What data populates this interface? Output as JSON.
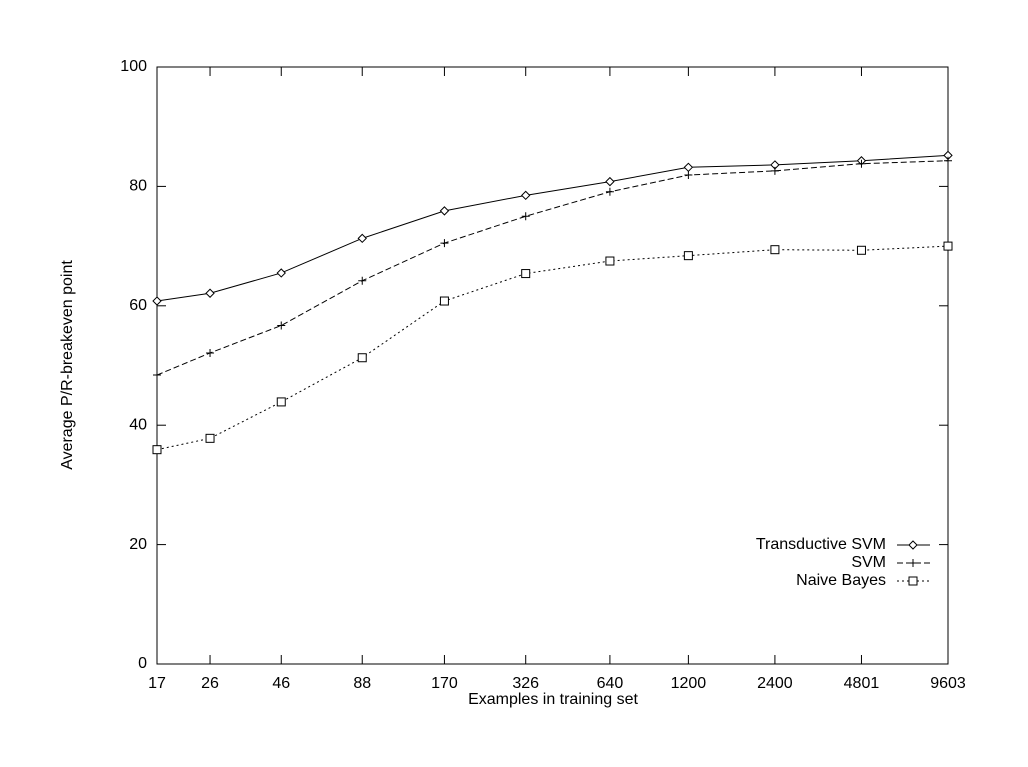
{
  "chart_data": {
    "type": "line",
    "x_label": "Examples in training set",
    "y_label": "Average P/R-breakeven point",
    "x": [
      17,
      26,
      46,
      88,
      170,
      326,
      640,
      1200,
      2400,
      4801,
      9603
    ],
    "xlim": [
      17,
      9603
    ],
    "xticks": [
      17,
      26,
      46,
      88,
      170,
      326,
      640,
      1200,
      2400,
      4801,
      9603
    ],
    "log_x": true,
    "ylim": [
      0,
      100
    ],
    "yticks": [
      0,
      20,
      40,
      60,
      80,
      100
    ],
    "grid": false,
    "legend": "lower right",
    "series": [
      {
        "name": "Transductive SVM",
        "color": "#000000",
        "values": [
          60.8,
          62.1,
          65.5,
          71.3,
          75.9,
          78.5,
          80.8,
          83.2,
          83.6,
          84.3,
          85.2
        ]
      },
      {
        "name": "SVM",
        "color": "#000000",
        "values": [
          48.4,
          52.1,
          56.7,
          64.2,
          70.5,
          75.0,
          79.1,
          81.9,
          82.6,
          83.8,
          84.3
        ]
      },
      {
        "name": "Naive Bayes",
        "color": "#000000",
        "values": [
          35.9,
          37.8,
          43.9,
          51.3,
          60.8,
          65.4,
          67.5,
          68.4,
          69.4,
          69.3,
          70.0
        ]
      }
    ]
  }
}
